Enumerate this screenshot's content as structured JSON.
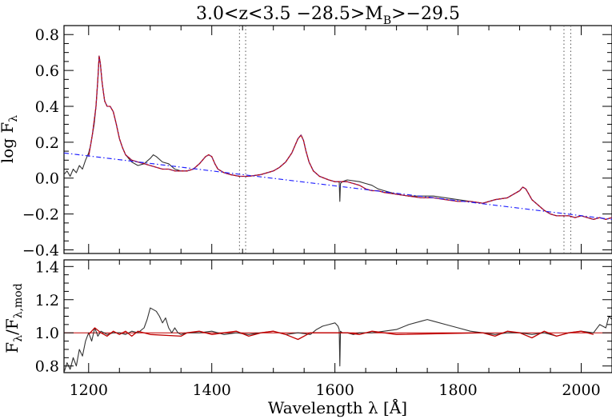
{
  "chart_data": [
    {
      "type": "line",
      "panel": "spectrum",
      "title": "3.0<z<3.5 −28.5>M_B>−29.5",
      "title_parts": {
        "pre": "3.0<z<3.5 −28.5>M",
        "sub": "B",
        "post": ">−29.5"
      },
      "ylabel": "log F_λ",
      "ylabel_parts": {
        "main": "log F",
        "sub": "λ"
      },
      "xlabel": "Wavelength λ [Å]",
      "xlim": [
        1160,
        2050
      ],
      "ylim": [
        -0.42,
        0.85
      ],
      "xticks": [
        1200,
        1400,
        1600,
        1800,
        2000
      ],
      "yticks": [
        0.8,
        0.6,
        0.4,
        0.2,
        0.0,
        -0.2,
        -0.4
      ],
      "ytick_labels": [
        "0.8",
        "0.6",
        "0.4",
        "0.2",
        "0.0",
        "−0.2",
        "−0.4"
      ],
      "vlines": [
        1445,
        1455,
        1972,
        1983
      ],
      "colors": {
        "spectrum": "#333333",
        "model": "#c00000",
        "fit": "#7030a0",
        "continuum": "#2020ff"
      },
      "series": [
        {
          "role": "spectrum",
          "x": [
            1160,
            1165,
            1170,
            1175,
            1180,
            1185,
            1190,
            1195,
            1200,
            1203,
            1206,
            1209,
            1212,
            1215,
            1217,
            1219,
            1222,
            1226,
            1230,
            1235,
            1240,
            1245,
            1250,
            1255,
            1260,
            1270,
            1280,
            1290,
            1300,
            1305,
            1310,
            1320,
            1330,
            1340,
            1350,
            1360,
            1370,
            1380,
            1390,
            1395,
            1400,
            1405,
            1410,
            1420,
            1430,
            1445,
            1460,
            1480,
            1500,
            1510,
            1520,
            1530,
            1535,
            1540,
            1545,
            1549,
            1553,
            1558,
            1565,
            1575,
            1590,
            1600,
            1607,
            1608,
            1609,
            1612,
            1620,
            1640,
            1650,
            1660,
            1670,
            1680,
            1690,
            1700,
            1720,
            1740,
            1760,
            1780,
            1800,
            1820,
            1840,
            1860,
            1880,
            1890,
            1900,
            1905,
            1910,
            1915,
            1920,
            1930,
            1940,
            1950,
            1960,
            1970,
            1980,
            1990,
            2000,
            2010,
            2020,
            2030,
            2040,
            2050
          ],
          "y": [
            0.02,
            0.04,
            0.01,
            0.05,
            0.03,
            0.07,
            0.05,
            0.1,
            0.14,
            0.18,
            0.24,
            0.3,
            0.4,
            0.55,
            0.68,
            0.64,
            0.53,
            0.43,
            0.4,
            0.4,
            0.37,
            0.3,
            0.22,
            0.17,
            0.13,
            0.09,
            0.07,
            0.08,
            0.11,
            0.13,
            0.12,
            0.09,
            0.08,
            0.05,
            0.04,
            0.04,
            0.05,
            0.08,
            0.12,
            0.13,
            0.12,
            0.08,
            0.05,
            0.03,
            0.02,
            0.01,
            0.01,
            0.02,
            0.04,
            0.06,
            0.09,
            0.14,
            0.18,
            0.22,
            0.24,
            0.21,
            0.15,
            0.09,
            0.04,
            0.01,
            -0.01,
            -0.02,
            -0.02,
            -0.13,
            -0.03,
            -0.02,
            -0.01,
            -0.02,
            -0.03,
            -0.04,
            -0.06,
            -0.07,
            -0.08,
            -0.09,
            -0.1,
            -0.1,
            -0.1,
            -0.11,
            -0.12,
            -0.13,
            -0.14,
            -0.12,
            -0.11,
            -0.09,
            -0.07,
            -0.05,
            -0.06,
            -0.09,
            -0.12,
            -0.15,
            -0.18,
            -0.2,
            -0.21,
            -0.21,
            -0.21,
            -0.22,
            -0.21,
            -0.22,
            -0.23,
            -0.22,
            -0.23,
            -0.22
          ]
        },
        {
          "role": "model",
          "x": [
            1200,
            1206,
            1212,
            1215,
            1217,
            1219,
            1222,
            1226,
            1230,
            1235,
            1240,
            1245,
            1250,
            1255,
            1260,
            1270,
            1280,
            1290,
            1300,
            1310,
            1320,
            1330,
            1340,
            1350,
            1360,
            1370,
            1380,
            1390,
            1395,
            1400,
            1405,
            1410,
            1420,
            1430,
            1445,
            1460,
            1480,
            1500,
            1510,
            1520,
            1530,
            1535,
            1540,
            1545,
            1549,
            1553,
            1558,
            1565,
            1575,
            1590,
            1600,
            1620,
            1640,
            1650,
            1660,
            1670,
            1680,
            1700,
            1720,
            1740,
            1760,
            1780,
            1800,
            1820,
            1840,
            1860,
            1880,
            1890,
            1900,
            1905,
            1910,
            1915,
            1920,
            1930,
            1940,
            1950,
            1960,
            1970,
            1980,
            1990,
            2000,
            2010,
            2020,
            2030,
            2040,
            2050
          ],
          "y": [
            0.12,
            0.24,
            0.4,
            0.55,
            0.68,
            0.64,
            0.53,
            0.43,
            0.4,
            0.4,
            0.37,
            0.3,
            0.22,
            0.17,
            0.13,
            0.1,
            0.09,
            0.08,
            0.07,
            0.06,
            0.05,
            0.05,
            0.04,
            0.04,
            0.04,
            0.05,
            0.08,
            0.12,
            0.13,
            0.12,
            0.08,
            0.05,
            0.03,
            0.02,
            0.01,
            0.01,
            0.02,
            0.04,
            0.06,
            0.09,
            0.14,
            0.18,
            0.22,
            0.24,
            0.21,
            0.15,
            0.09,
            0.04,
            0.01,
            -0.01,
            -0.02,
            -0.02,
            -0.04,
            -0.06,
            -0.07,
            -0.07,
            -0.08,
            -0.09,
            -0.1,
            -0.11,
            -0.11,
            -0.12,
            -0.13,
            -0.13,
            -0.14,
            -0.12,
            -0.11,
            -0.09,
            -0.07,
            -0.05,
            -0.06,
            -0.09,
            -0.12,
            -0.15,
            -0.18,
            -0.2,
            -0.21,
            -0.21,
            -0.21,
            -0.22,
            -0.21,
            -0.22,
            -0.23,
            -0.22,
            -0.23,
            -0.22
          ]
        },
        {
          "role": "continuum",
          "x": [
            1160,
            2050
          ],
          "y": [
            0.14,
            -0.23
          ]
        }
      ]
    },
    {
      "type": "line",
      "panel": "ratio",
      "ylabel": "F_λ/F_λ,mod",
      "ylabel_parts": {
        "a": "F",
        "asub": "λ",
        "b": "/F",
        "bsub": "λ,mod"
      },
      "xlabel": "Wavelength λ [Å]",
      "xlim": [
        1160,
        2050
      ],
      "ylim": [
        0.76,
        1.44
      ],
      "xticks": [
        1200,
        1400,
        1600,
        1800,
        2000
      ],
      "xtick_labels": [
        "1200",
        "1400",
        "1600",
        "1800",
        "2000"
      ],
      "yticks": [
        1.4,
        1.2,
        1.0,
        0.8
      ],
      "ytick_labels": [
        "1.4",
        "1.2",
        "1.0",
        "0.8"
      ],
      "reference_line": 1.0,
      "colors": {
        "ratio": "#333333",
        "ratio_fit": "#c00000",
        "reference": "#c00000"
      },
      "series": [
        {
          "role": "ratio",
          "x": [
            1160,
            1165,
            1170,
            1175,
            1180,
            1185,
            1190,
            1195,
            1200,
            1205,
            1210,
            1215,
            1220,
            1230,
            1240,
            1250,
            1260,
            1270,
            1280,
            1290,
            1295,
            1300,
            1305,
            1310,
            1315,
            1320,
            1325,
            1330,
            1335,
            1340,
            1345,
            1350,
            1360,
            1380,
            1400,
            1420,
            1440,
            1460,
            1480,
            1500,
            1520,
            1540,
            1560,
            1570,
            1580,
            1590,
            1600,
            1605,
            1607,
            1608,
            1609,
            1612,
            1620,
            1630,
            1640,
            1660,
            1680,
            1700,
            1720,
            1740,
            1750,
            1760,
            1780,
            1800,
            1820,
            1840,
            1860,
            1880,
            1900,
            1920,
            1940,
            1960,
            1980,
            2000,
            2020,
            2030,
            2040,
            2045,
            2050
          ],
          "y": [
            0.76,
            0.82,
            0.78,
            0.85,
            0.8,
            0.9,
            0.86,
            0.95,
            1.0,
            0.95,
            1.03,
            0.98,
            1.01,
            0.99,
            1.0,
            1.0,
            0.99,
            1.01,
            1.0,
            1.03,
            1.08,
            1.15,
            1.14,
            1.13,
            1.1,
            1.06,
            1.09,
            1.03,
            1.0,
            1.03,
            1.0,
            0.99,
            1.0,
            1.0,
            1.01,
            0.99,
            1.0,
            0.99,
            1.0,
            1.01,
            0.99,
            1.0,
            0.99,
            1.02,
            1.04,
            1.05,
            1.06,
            1.04,
            1.02,
            0.8,
            1.01,
            1.0,
            1.0,
            0.99,
            1.0,
            1.0,
            1.01,
            1.02,
            1.05,
            1.07,
            1.08,
            1.07,
            1.05,
            1.03,
            1.01,
            1.0,
            0.99,
            1.0,
            1.0,
            0.99,
            1.0,
            0.98,
            1.0,
            1.01,
            1.0,
            1.05,
            1.03,
            1.1,
            1.08
          ]
        },
        {
          "role": "ratio_fit",
          "x": [
            1200,
            1210,
            1220,
            1230,
            1240,
            1250,
            1260,
            1270,
            1280,
            1290,
            1300,
            1350,
            1360,
            1380,
            1400,
            1420,
            1440,
            1460,
            1480,
            1500,
            1520,
            1540,
            1560,
            1620,
            1640,
            1660,
            1680,
            1700,
            1840,
            1860,
            1880,
            1900,
            1920,
            1940,
            1960,
            1980,
            2000,
            2020
          ],
          "y": [
            0.99,
            1.03,
            1.0,
            0.98,
            1.01,
            0.99,
            1.01,
            0.98,
            1.01,
            1.0,
            0.99,
            0.98,
            1.0,
            1.01,
            0.99,
            1.0,
            1.01,
            0.98,
            1.0,
            1.01,
            0.99,
            0.96,
            1.0,
            1.0,
            0.99,
            1.01,
            1.0,
            0.99,
            1.0,
            0.98,
            1.01,
            1.0,
            0.97,
            1.01,
            0.98,
            1.0,
            1.01,
            0.99
          ]
        }
      ]
    }
  ]
}
